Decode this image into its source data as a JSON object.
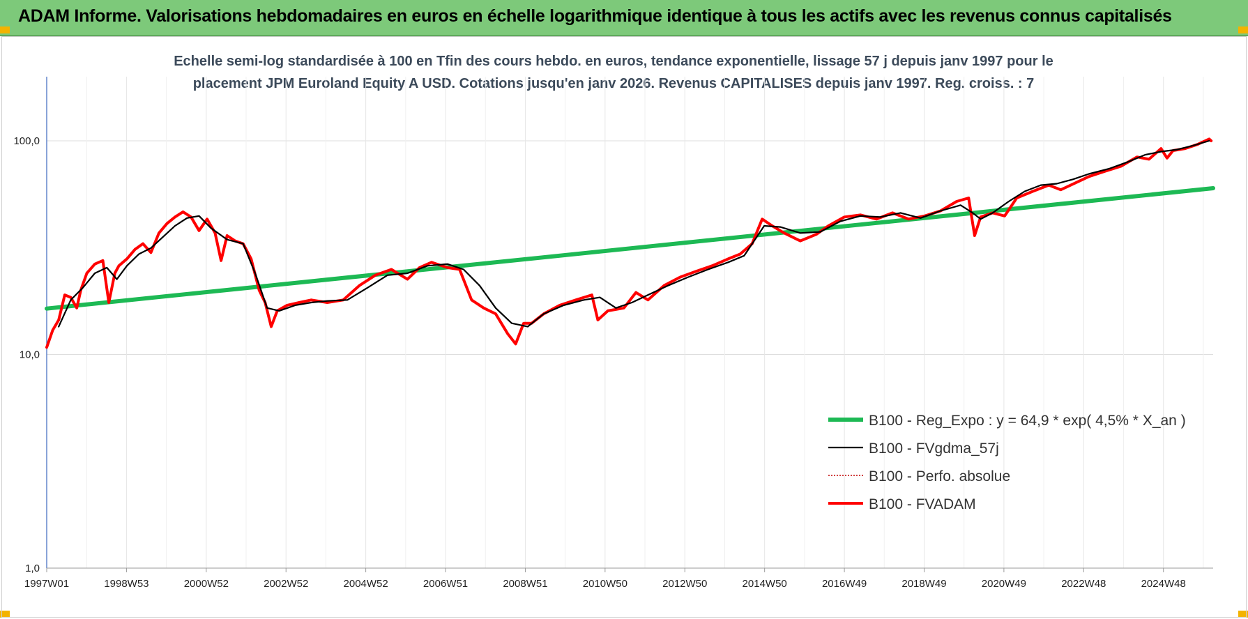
{
  "header": {
    "title": "ADAM Informe. Valorisations hebdomadaires en euros en échelle logarithmique identique à tous les actifs avec les revenus connus capitalisés"
  },
  "chart_data": {
    "type": "line",
    "subtitle_line1": "Echelle semi-log standardisée à 100 en Tfin des cours hebdo. en euros, tendance exponentielle, lissage 57 j depuis janv 1997 pour le",
    "subtitle_line2": "placement JPM Euroland Equity A USD. Cotations jusqu'en janv 2026. Revenus CAPITALISES depuis janv 1997. Reg. croiss. : 7",
    "y_scale": "log",
    "ylim": [
      1,
      100
    ],
    "y_ticks": [
      "1,0",
      "10,0",
      "100,0"
    ],
    "x_ticks": [
      "1997W01",
      "1998W53",
      "2000W52",
      "2002W52",
      "2004W52",
      "2006W51",
      "2008W51",
      "2010W50",
      "2012W50",
      "2014W50",
      "2016W49",
      "2018W49",
      "2020W49",
      "2022W48",
      "2024W48"
    ],
    "x_range_years": [
      1997.0,
      2026.1
    ],
    "grid": true,
    "legend_position": "right",
    "series": [
      {
        "name": "B100 - Reg_Expo : y = 64,9 * exp( 4,5% *  X_an )",
        "color": "#1db954",
        "x": [
          1997.0,
          2026.1
        ],
        "values": [
          16.4,
          60.0
        ]
      },
      {
        "name": "B100 - FVgdma_57j",
        "color": "#000000",
        "x": [
          1997.3,
          1997.6,
          1997.9,
          1998.2,
          1998.5,
          1998.75,
          1999.0,
          1999.3,
          1999.6,
          1999.9,
          2000.2,
          2000.5,
          2000.8,
          2001.1,
          2001.5,
          2001.9,
          2002.2,
          2002.5,
          2002.8,
          2003.2,
          2003.6,
          2004.0,
          2004.5,
          2005.0,
          2005.5,
          2006.0,
          2006.5,
          2007.0,
          2007.4,
          2007.8,
          2008.2,
          2008.6,
          2009.0,
          2009.4,
          2009.9,
          2010.4,
          2010.8,
          2011.2,
          2011.6,
          2012.0,
          2012.5,
          2013.0,
          2013.5,
          2014.0,
          2014.4,
          2014.9,
          2015.3,
          2015.8,
          2016.3,
          2016.8,
          2017.3,
          2017.8,
          2018.3,
          2018.8,
          2019.3,
          2019.8,
          2020.1,
          2020.3,
          2020.6,
          2021.0,
          2021.4,
          2021.8,
          2022.2,
          2022.6,
          2023.0,
          2023.5,
          2024.0,
          2024.4,
          2024.8,
          2025.2,
          2025.6,
          2026.0
        ],
        "values": [
          13.5,
          18.0,
          20.5,
          24.0,
          25.5,
          22.5,
          26.0,
          29.5,
          31.5,
          35.5,
          40.0,
          43.5,
          44.5,
          39.0,
          34.5,
          33.0,
          24.0,
          16.5,
          16.0,
          17.0,
          17.5,
          17.8,
          18.0,
          20.5,
          23.5,
          24.0,
          26.0,
          26.5,
          25.0,
          21.0,
          16.5,
          14.0,
          13.5,
          15.5,
          17.0,
          18.0,
          18.5,
          16.5,
          17.5,
          19.0,
          21.0,
          23.0,
          25.0,
          27.0,
          29.0,
          40.0,
          39.5,
          37.0,
          37.5,
          42.0,
          44.5,
          44.0,
          46.0,
          43.5,
          47.0,
          50.0,
          46.0,
          43.0,
          46.0,
          52.0,
          58.0,
          62.0,
          63.0,
          66.0,
          70.0,
          74.0,
          80.0,
          86.0,
          89.0,
          91.0,
          95.0,
          100.0
        ]
      },
      {
        "name": "B100 - Perfo. absolue",
        "color": "#c00000",
        "x": [],
        "values": []
      },
      {
        "name": "B100 - FVADAM",
        "color": "#ff0000",
        "x": [
          1997.0,
          1997.15,
          1997.3,
          1997.45,
          1997.6,
          1997.75,
          1997.85,
          1998.0,
          1998.2,
          1998.4,
          1998.55,
          1998.7,
          1998.8,
          1999.0,
          1999.2,
          1999.4,
          1999.6,
          1999.8,
          2000.0,
          2000.2,
          2000.4,
          2000.6,
          2000.8,
          2001.0,
          2001.2,
          2001.35,
          2001.5,
          2001.7,
          2001.9,
          2002.1,
          2002.3,
          2002.45,
          2002.6,
          2002.75,
          2003.0,
          2003.3,
          2003.6,
          2004.0,
          2004.4,
          2004.8,
          2005.2,
          2005.6,
          2006.0,
          2006.3,
          2006.6,
          2007.0,
          2007.3,
          2007.6,
          2007.9,
          2008.2,
          2008.5,
          2008.7,
          2008.9,
          2009.1,
          2009.4,
          2009.8,
          2010.2,
          2010.6,
          2010.75,
          2011.0,
          2011.4,
          2011.7,
          2012.0,
          2012.4,
          2012.8,
          2013.2,
          2013.6,
          2014.0,
          2014.3,
          2014.6,
          2014.85,
          2015.1,
          2015.4,
          2015.8,
          2016.2,
          2016.5,
          2016.9,
          2017.3,
          2017.7,
          2018.1,
          2018.5,
          2018.9,
          2019.3,
          2019.7,
          2020.0,
          2020.15,
          2020.3,
          2020.6,
          2020.9,
          2021.2,
          2021.6,
          2022.0,
          2022.3,
          2022.7,
          2023.0,
          2023.4,
          2023.8,
          2024.2,
          2024.5,
          2024.8,
          2024.95,
          2025.1,
          2025.4,
          2025.7,
          2026.0,
          2026.05
        ],
        "values": [
          10.8,
          13.0,
          14.5,
          19.0,
          18.5,
          16.5,
          20.0,
          24.0,
          26.5,
          27.5,
          17.5,
          24.0,
          26.0,
          28.0,
          31.0,
          33.0,
          30.0,
          37.0,
          41.0,
          44.0,
          46.5,
          44.0,
          38.0,
          43.0,
          37.0,
          27.5,
          36.0,
          34.0,
          33.0,
          28.0,
          20.0,
          17.5,
          13.5,
          16.0,
          17.0,
          17.5,
          18.0,
          17.5,
          18.0,
          21.0,
          23.5,
          25.0,
          22.5,
          25.5,
          27.0,
          25.5,
          25.0,
          18.0,
          16.5,
          15.5,
          12.5,
          11.2,
          14.0,
          14.0,
          15.5,
          17.0,
          18.0,
          19.0,
          14.5,
          16.0,
          16.5,
          19.5,
          18.0,
          21.0,
          23.0,
          24.5,
          26.0,
          28.0,
          29.5,
          33.0,
          43.0,
          40.0,
          37.0,
          34.0,
          36.5,
          40.0,
          44.0,
          45.0,
          43.0,
          46.0,
          43.0,
          44.5,
          47.0,
          52.0,
          54.0,
          36.0,
          44.0,
          46.0,
          44.5,
          54.0,
          58.0,
          62.0,
          59.0,
          64.0,
          68.0,
          72.0,
          76.0,
          84.0,
          82.0,
          92.0,
          83.0,
          90.0,
          92.0,
          96.0,
          102.0,
          100.0
        ]
      }
    ]
  }
}
